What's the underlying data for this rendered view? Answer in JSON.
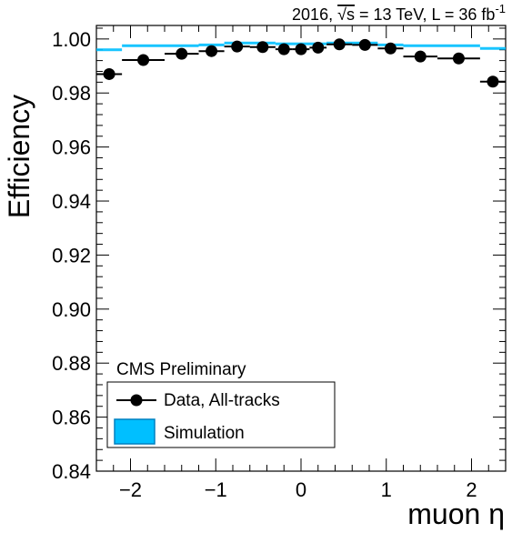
{
  "chart_data": {
    "type": "scatter",
    "title": "",
    "header": {
      "prefix": "2016, ",
      "sqrt": "√s",
      "energy": " = 13 TeV, L = 36 fb",
      "lumi_exp": "-1"
    },
    "xlabel": "muon η",
    "ylabel": "Efficiency",
    "xlim": [
      -2.4,
      2.4
    ],
    "ylim": [
      0.84,
      1.005
    ],
    "xticks": [
      -2,
      -1,
      0,
      1,
      2
    ],
    "xtick_labels": [
      "−2",
      "−1",
      "0",
      "1",
      "2"
    ],
    "yticks": [
      0.84,
      0.86,
      0.88,
      0.9,
      0.92,
      0.94,
      0.96,
      0.98,
      1.0
    ],
    "ytick_labels": [
      "0.84",
      "0.86",
      "0.88",
      "0.90",
      "0.92",
      "0.94",
      "0.96",
      "0.98",
      "1.00"
    ],
    "annotation": "CMS Preliminary",
    "legend_position": "bottom-left",
    "series": [
      {
        "name": "Data, All-tracks",
        "style": "markers-with-xerror",
        "color": "#000000",
        "points": [
          {
            "x": -2.25,
            "xlo": -2.4,
            "xhi": -2.1,
            "y": 0.987
          },
          {
            "x": -1.85,
            "xlo": -2.1,
            "xhi": -1.6,
            "y": 0.9922
          },
          {
            "x": -1.4,
            "xlo": -1.6,
            "xhi": -1.2,
            "y": 0.9945
          },
          {
            "x": -1.05,
            "xlo": -1.2,
            "xhi": -0.9,
            "y": 0.9955
          },
          {
            "x": -0.75,
            "xlo": -0.9,
            "xhi": -0.6,
            "y": 0.9972
          },
          {
            "x": -0.45,
            "xlo": -0.6,
            "xhi": -0.3,
            "y": 0.997
          },
          {
            "x": -0.2,
            "xlo": -0.3,
            "xhi": -0.1,
            "y": 0.9962
          },
          {
            "x": 0.0,
            "xlo": -0.1,
            "xhi": 0.1,
            "y": 0.9962
          },
          {
            "x": 0.2,
            "xlo": 0.1,
            "xhi": 0.3,
            "y": 0.9968
          },
          {
            "x": 0.45,
            "xlo": 0.3,
            "xhi": 0.6,
            "y": 0.998
          },
          {
            "x": 0.75,
            "xlo": 0.6,
            "xhi": 0.9,
            "y": 0.9978
          },
          {
            "x": 1.05,
            "xlo": 0.9,
            "xhi": 1.2,
            "y": 0.9965
          },
          {
            "x": 1.4,
            "xlo": 1.2,
            "xhi": 1.6,
            "y": 0.9935
          },
          {
            "x": 1.85,
            "xlo": 1.6,
            "xhi": 2.1,
            "y": 0.9928
          },
          {
            "x": 2.25,
            "xlo": 2.1,
            "xhi": 2.4,
            "y": 0.9842
          }
        ]
      },
      {
        "name": "Simulation",
        "style": "band",
        "color": "#00bfff",
        "points": [
          {
            "xlo": -2.4,
            "xhi": -2.1,
            "y": 0.996
          },
          {
            "xlo": -2.1,
            "xhi": -1.2,
            "y": 0.9975
          },
          {
            "xlo": -1.2,
            "xhi": -0.9,
            "y": 0.9978
          },
          {
            "xlo": -0.9,
            "xhi": -0.3,
            "y": 0.9985
          },
          {
            "xlo": -0.3,
            "xhi": 0.3,
            "y": 0.9982
          },
          {
            "xlo": 0.3,
            "xhi": 0.9,
            "y": 0.9985
          },
          {
            "xlo": 0.9,
            "xhi": 1.2,
            "y": 0.9978
          },
          {
            "xlo": 1.2,
            "xhi": 2.1,
            "y": 0.9975
          },
          {
            "xlo": 2.1,
            "xhi": 2.4,
            "y": 0.9965
          }
        ]
      }
    ]
  }
}
